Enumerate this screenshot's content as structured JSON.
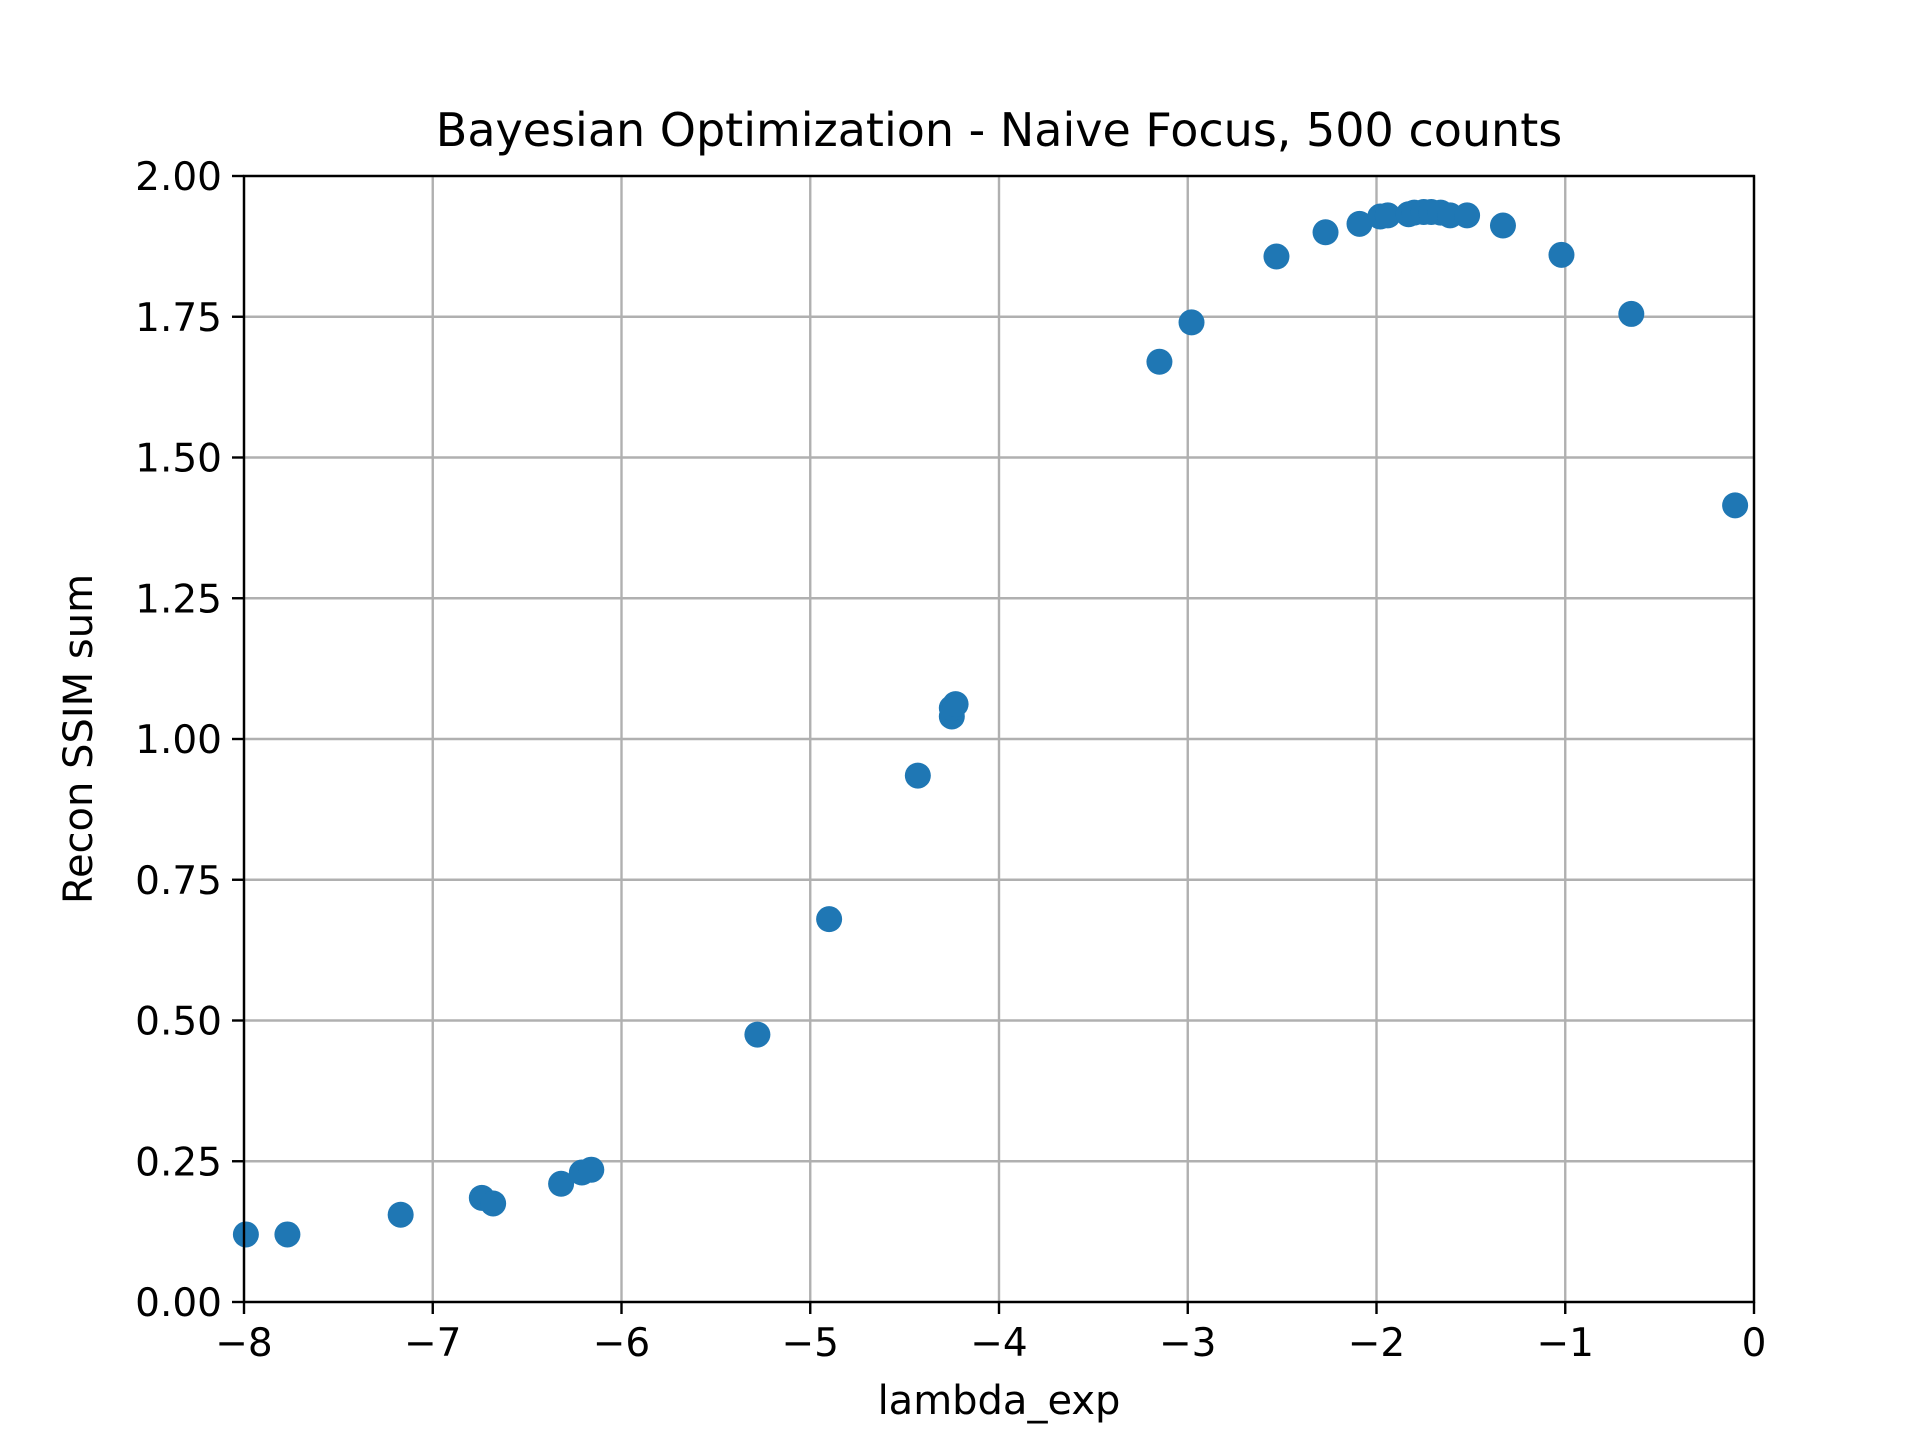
{
  "chart_data": {
    "type": "scatter",
    "title": "Bayesian Optimization - Naive Focus, 500 counts",
    "xlabel": "lambda_exp",
    "ylabel": "Recon SSIM sum",
    "xlim": [
      -8,
      0
    ],
    "ylim": [
      0,
      2
    ],
    "x_ticks": [
      -8,
      -7,
      -6,
      -5,
      -4,
      -3,
      -2,
      -1,
      0
    ],
    "x_tick_labels": [
      "−8",
      "−7",
      "−6",
      "−5",
      "−4",
      "−3",
      "−2",
      "−1",
      "0"
    ],
    "y_ticks": [
      0,
      0.25,
      0.5,
      0.75,
      1.0,
      1.25,
      1.5,
      1.75,
      2.0
    ],
    "y_tick_labels": [
      "0.00",
      "0.25",
      "0.50",
      "0.75",
      "1.00",
      "1.25",
      "1.50",
      "1.75",
      "2.00"
    ],
    "grid": true,
    "marker_color": "#1f77b4",
    "series": [
      {
        "points": [
          [
            -7.99,
            0.12
          ],
          [
            -7.77,
            0.12
          ],
          [
            -7.17,
            0.155
          ],
          [
            -6.74,
            0.185
          ],
          [
            -6.68,
            0.175
          ],
          [
            -6.32,
            0.21
          ],
          [
            -6.21,
            0.23
          ],
          [
            -6.16,
            0.235
          ],
          [
            -5.28,
            0.475
          ],
          [
            -4.9,
            0.68
          ],
          [
            -4.43,
            0.935
          ],
          [
            -4.25,
            1.04
          ],
          [
            -4.25,
            1.055
          ],
          [
            -4.23,
            1.062
          ],
          [
            -3.15,
            1.67
          ],
          [
            -2.98,
            1.74
          ],
          [
            -2.53,
            1.857
          ],
          [
            -2.27,
            1.9
          ],
          [
            -2.09,
            1.915
          ],
          [
            -1.98,
            1.928
          ],
          [
            -1.94,
            1.93
          ],
          [
            -1.83,
            1.932
          ],
          [
            -1.8,
            1.935
          ],
          [
            -1.75,
            1.936
          ],
          [
            -1.71,
            1.936
          ],
          [
            -1.66,
            1.935
          ],
          [
            -1.61,
            1.93
          ],
          [
            -1.52,
            1.93
          ],
          [
            -1.33,
            1.912
          ],
          [
            -1.02,
            1.86
          ],
          [
            -0.65,
            1.755
          ],
          [
            -0.1,
            1.415
          ]
        ]
      }
    ]
  }
}
